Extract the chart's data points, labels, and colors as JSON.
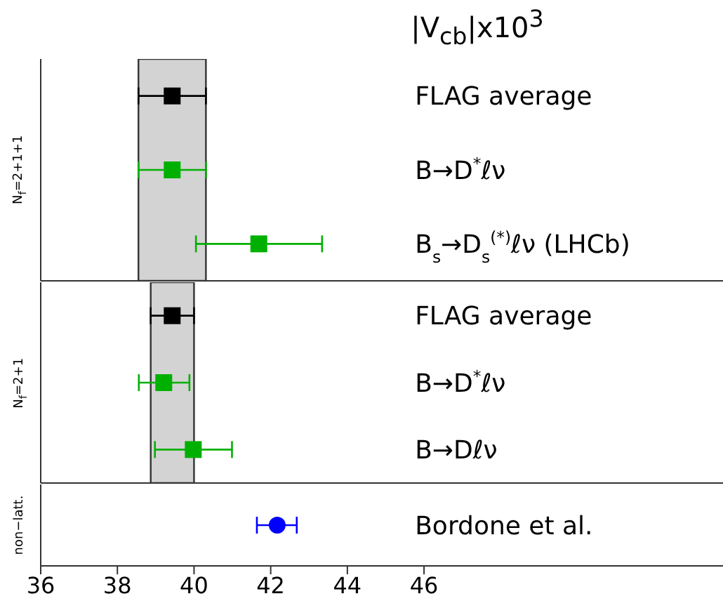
{
  "chart_data": [
    {
      "type": "scatter",
      "orientation": "horizontal",
      "title": "|V$_{cb}$|x10$^{3}$",
      "ylabel": "N$_{f}$=2+1+1",
      "marker": "square",
      "tick_labels": "y",
      "categories": [
        "FLAG average",
        "B→D$^{*}$ℓν",
        "B$_{s}$→D$_{s}$$^{(*)}$ℓν (LHCb)"
      ],
      "values": [
        39.43,
        39.43,
        41.69
      ],
      "errors": [
        [
          38.55,
          40.31
        ],
        [
          38.55,
          40.31
        ],
        [
          40.05,
          43.34
        ]
      ],
      "colors": [
        "#000000",
        "#00b000",
        "#00b000"
      ],
      "bands": [
        {
          "axis": "x",
          "from": 38.55,
          "to": 40.31,
          "color": "#d3d3d3"
        }
      ],
      "xlim": [
        36,
        53.8
      ],
      "xticks": [
        36,
        38,
        40,
        42,
        44,
        46
      ]
    },
    {
      "type": "scatter",
      "orientation": "horizontal",
      "ylabel": "N$_{f}$=2+1",
      "marker": "square",
      "tick_labels": "y",
      "categories": [
        "FLAG average",
        "B→D$^{*}$ℓν",
        "B→Dℓν"
      ],
      "values": [
        39.43,
        39.21,
        39.98
      ],
      "errors": [
        [
          38.87,
          40.0
        ],
        [
          38.56,
          39.88
        ],
        [
          38.98,
          40.99
        ]
      ],
      "colors": [
        "#000000",
        "#00b000",
        "#00b000"
      ],
      "bands": [
        {
          "axis": "x",
          "from": 38.87,
          "to": 40.0,
          "color": "#d3d3d3"
        }
      ],
      "xlim": [
        36,
        53.8
      ],
      "xticks": [
        36,
        38,
        40,
        42,
        44,
        46
      ]
    },
    {
      "type": "scatter",
      "orientation": "horizontal",
      "ylabel": "non−latt.",
      "marker": "circle",
      "categories": [
        "Bordone et al."
      ],
      "values": [
        42.17
      ],
      "errors": [
        [
          41.64,
          42.68
        ]
      ],
      "colors": [
        "#0000ff"
      ],
      "xlim": [
        36,
        53.8
      ],
      "xticks": [
        36,
        38,
        40,
        42,
        44,
        46
      ]
    }
  ]
}
